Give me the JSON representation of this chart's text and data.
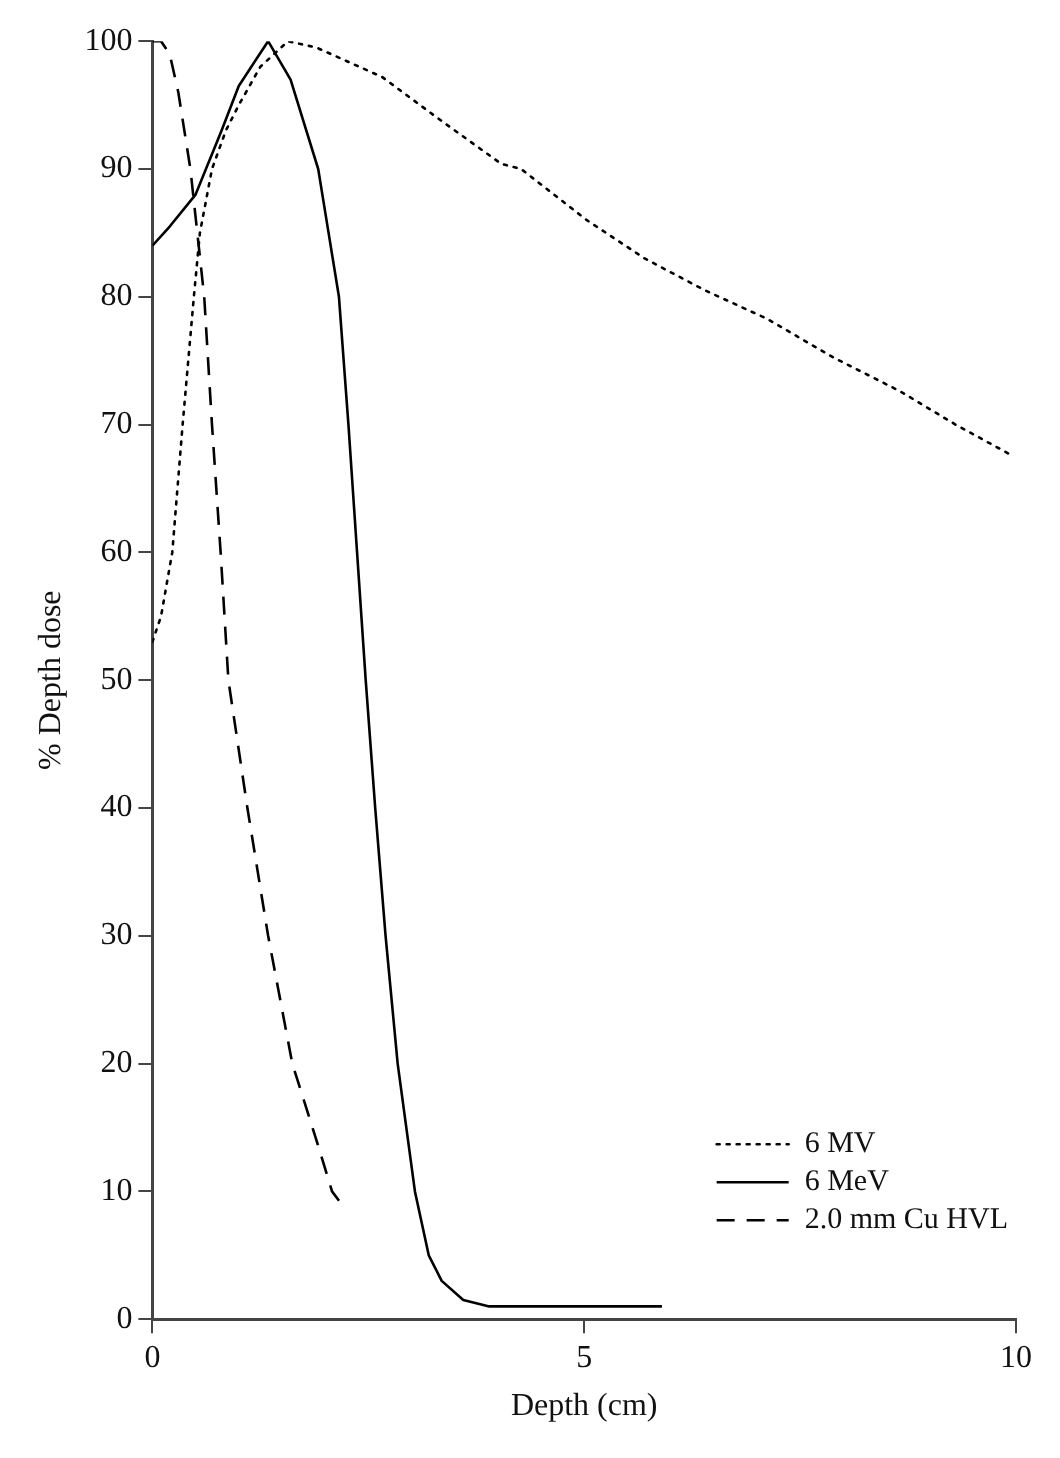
{
  "chart_data": {
    "type": "line",
    "xlabel": "Depth (cm)",
    "ylabel": "% Depth dose",
    "xlim": [
      0,
      10
    ],
    "ylim": [
      0,
      100
    ],
    "xticks": [
      0,
      5,
      10
    ],
    "yticks": [
      0,
      10,
      20,
      30,
      40,
      50,
      60,
      70,
      80,
      90,
      100
    ],
    "grid": false,
    "legend": "bottom right",
    "marker": "none",
    "series": [
      {
        "name": "6 MV",
        "color": "#000000",
        "line_style": "dotted",
        "x": [
          0,
          0.1,
          0.23,
          0.35,
          0.48,
          0.55,
          0.69,
          0.85,
          1.0,
          1.25,
          1.57,
          1.9,
          2.66,
          3.3,
          4.04,
          4.27,
          5.03,
          5.7,
          6.4,
          7.11,
          7.9,
          8.66,
          9.3,
          9.95
        ],
        "values": [
          53,
          55,
          60,
          70,
          80,
          85,
          90,
          93,
          95,
          98,
          100,
          99.5,
          97.2,
          94,
          90.4,
          90,
          86,
          83,
          80.5,
          78.3,
          75.2,
          72.6,
          70,
          67.6
        ]
      },
      {
        "name": "6 MeV",
        "color": "#000000",
        "line_style": "solid",
        "x": [
          0,
          0.2,
          0.5,
          0.8,
          1.0,
          1.34,
          1.6,
          1.92,
          2.04,
          2.16,
          2.27,
          2.37,
          2.47,
          2.58,
          2.7,
          2.84,
          3.04,
          3.2,
          3.35,
          3.6,
          3.9,
          5.9
        ],
        "values": [
          84,
          85.5,
          88,
          93,
          96.5,
          100,
          97,
          90,
          85,
          80,
          70,
          60,
          50,
          40,
          30,
          20,
          10,
          5,
          3,
          1.5,
          1,
          1
        ]
      },
      {
        "name": "2.0 mm Cu HVL",
        "color": "#000000",
        "line_style": "dashed",
        "x": [
          0,
          0.1,
          0.2,
          0.3,
          0.44,
          0.6,
          0.69,
          0.79,
          0.88,
          1.1,
          1.34,
          1.62,
          1.9,
          2.08,
          2.19
        ],
        "values": [
          100,
          100,
          99,
          96,
          90,
          80,
          70,
          60,
          50,
          40,
          30,
          20,
          14,
          10,
          9
        ]
      }
    ]
  }
}
